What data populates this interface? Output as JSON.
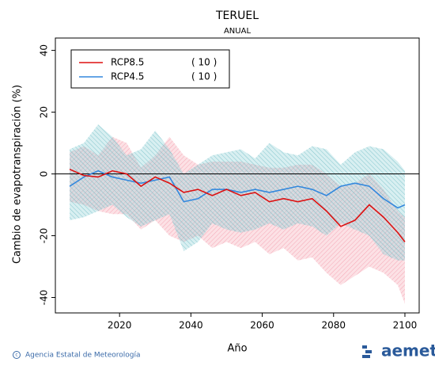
{
  "chart_data": {
    "type": "line_band",
    "title": "TERUEL",
    "subtitle": "ANUAL",
    "x_label": "Año",
    "y_label": "Cambio de evapotranspiración (%)",
    "xlim": [
      2002,
      2104
    ],
    "xticks": [
      2020,
      2040,
      2060,
      2080,
      2100
    ],
    "ylim": [
      -45,
      44
    ],
    "yticks": [
      -40,
      -20,
      0,
      20,
      40
    ],
    "reference_line": 0,
    "x": [
      2006,
      2010,
      2014,
      2018,
      2022,
      2026,
      2030,
      2034,
      2038,
      2042,
      2046,
      2050,
      2054,
      2058,
      2062,
      2066,
      2070,
      2074,
      2078,
      2082,
      2086,
      2090,
      2094,
      2098,
      2100
    ],
    "series": [
      {
        "name": "RCP8.5",
        "members": "( 10 )",
        "color": "#dd1111",
        "band_color": "#f5a8b4",
        "values": [
          1.5,
          -0.5,
          -1,
          1,
          0,
          -4,
          -1,
          -3,
          -6,
          -5,
          -7,
          -5,
          -7,
          -6,
          -9,
          -8,
          -9,
          -8,
          -12,
          -17,
          -15,
          -10,
          -14,
          -19,
          -22
        ],
        "upper": [
          7,
          9,
          6,
          12,
          10,
          2,
          6,
          12,
          6,
          3,
          4,
          4,
          4,
          3,
          2,
          2,
          3,
          3,
          0,
          -4,
          -3,
          0,
          -5,
          -12,
          -14
        ],
        "lower": [
          -9,
          -10,
          -12,
          -13,
          -13,
          -18,
          -15,
          -20,
          -22,
          -20,
          -24,
          -22,
          -24,
          -22,
          -26,
          -24,
          -28,
          -27,
          -32,
          -36,
          -33,
          -30,
          -32,
          -36,
          -42
        ]
      },
      {
        "name": "RCP4.5",
        "members": "( 10 )",
        "color": "#3388dd",
        "band_color": "#8ed2d8",
        "values": [
          -4,
          -1,
          1,
          -1,
          -2,
          -3,
          -2,
          -1,
          -9,
          -8,
          -5,
          -5,
          -6,
          -5,
          -6,
          -5,
          -4,
          -5,
          -7,
          -4,
          -3,
          -4,
          -8,
          -11,
          -10
        ],
        "upper": [
          8,
          10,
          16,
          12,
          6,
          8,
          14,
          8,
          0,
          3,
          6,
          7,
          8,
          5,
          10,
          7,
          6,
          9,
          8,
          3,
          7,
          9,
          8,
          4,
          1
        ],
        "lower": [
          -15,
          -14,
          -12,
          -10,
          -14,
          -17,
          -15,
          -13,
          -25,
          -22,
          -16,
          -18,
          -19,
          -18,
          -16,
          -18,
          -16,
          -17,
          -20,
          -16,
          -18,
          -20,
          -26,
          -28,
          -28
        ]
      }
    ]
  },
  "footer": {
    "agency": "Agencia Estatal de Meteorología",
    "logo": "aemet"
  }
}
